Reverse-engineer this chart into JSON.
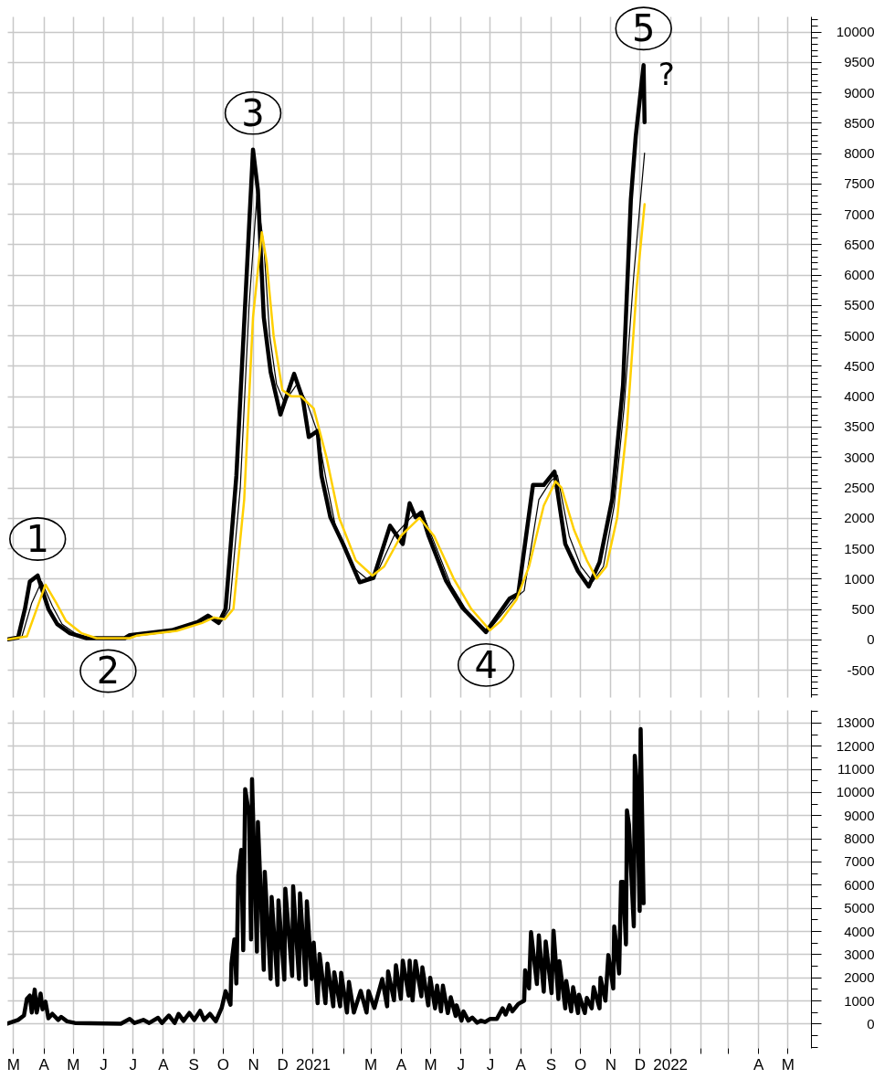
{
  "chart_data": [
    {
      "type": "line",
      "grid": true,
      "tick_labels": "y",
      "xlim": [
        "2020-02-24",
        "2022-05-25"
      ],
      "xticks": [
        {
          "value": "2020-03-01",
          "label": null
        },
        {
          "value": "2020-04-01",
          "label": null
        },
        {
          "value": "2020-05-01",
          "label": null
        },
        {
          "value": "2020-06-01",
          "label": null
        },
        {
          "value": "2020-07-01",
          "label": null
        },
        {
          "value": "2020-08-01",
          "label": null
        },
        {
          "value": "2020-09-01",
          "label": null
        },
        {
          "value": "2020-10-01",
          "label": null
        },
        {
          "value": "2020-11-01",
          "label": null
        },
        {
          "value": "2020-12-01",
          "label": null
        },
        {
          "value": "2021-01-01",
          "label": null
        },
        {
          "value": "2021-02-01",
          "label": null
        },
        {
          "value": "2021-03-01",
          "label": null
        },
        {
          "value": "2021-04-01",
          "label": null
        },
        {
          "value": "2021-05-01",
          "label": null
        },
        {
          "value": "2021-06-01",
          "label": null
        },
        {
          "value": "2021-07-01",
          "label": null
        },
        {
          "value": "2021-08-01",
          "label": null
        },
        {
          "value": "2021-09-01",
          "label": null
        },
        {
          "value": "2021-10-01",
          "label": null
        },
        {
          "value": "2021-11-01",
          "label": null
        },
        {
          "value": "2021-12-01",
          "label": null
        },
        {
          "value": "2022-01-01",
          "label": null
        },
        {
          "value": "2022-02-01",
          "label": null
        },
        {
          "value": "2022-03-01",
          "label": null
        },
        {
          "value": "2022-04-01",
          "label": null
        },
        {
          "value": "2022-05-01",
          "label": null
        }
      ],
      "ylim": [
        -950,
        10250
      ],
      "yticks": [
        {
          "value": -900,
          "label": null
        },
        {
          "value": -800,
          "label": null
        },
        {
          "value": -700,
          "label": null
        },
        {
          "value": -600,
          "label": null
        },
        -500,
        {
          "value": -400,
          "label": null
        },
        {
          "value": -300,
          "label": null
        },
        {
          "value": -200,
          "label": null
        },
        {
          "value": -100,
          "label": null
        },
        0,
        {
          "value": 100,
          "label": null
        },
        {
          "value": 200,
          "label": null
        },
        {
          "value": 300,
          "label": null
        },
        {
          "value": 400,
          "label": null
        },
        500,
        {
          "value": 600,
          "label": null
        },
        {
          "value": 700,
          "label": null
        },
        {
          "value": 800,
          "label": null
        },
        {
          "value": 900,
          "label": null
        },
        1000,
        {
          "value": 1100,
          "label": null
        },
        {
          "value": 1200,
          "label": null
        },
        {
          "value": 1300,
          "label": null
        },
        {
          "value": 1400,
          "label": null
        },
        1500,
        {
          "value": 1600,
          "label": null
        },
        {
          "value": 1700,
          "label": null
        },
        {
          "value": 1800,
          "label": null
        },
        {
          "value": 1900,
          "label": null
        },
        2000,
        {
          "value": 2100,
          "label": null
        },
        {
          "value": 2200,
          "label": null
        },
        {
          "value": 2300,
          "label": null
        },
        {
          "value": 2400,
          "label": null
        },
        2500,
        {
          "value": 2600,
          "label": null
        },
        {
          "value": 2700,
          "label": null
        },
        {
          "value": 2800,
          "label": null
        },
        {
          "value": 2900,
          "label": null
        },
        3000,
        {
          "value": 3100,
          "label": null
        },
        {
          "value": 3200,
          "label": null
        },
        {
          "value": 3300,
          "label": null
        },
        {
          "value": 3400,
          "label": null
        },
        3500,
        {
          "value": 3600,
          "label": null
        },
        {
          "value": 3700,
          "label": null
        },
        {
          "value": 3800,
          "label": null
        },
        {
          "value": 3900,
          "label": null
        },
        4000,
        {
          "value": 4100,
          "label": null
        },
        {
          "value": 4200,
          "label": null
        },
        {
          "value": 4300,
          "label": null
        },
        {
          "value": 4400,
          "label": null
        },
        4500,
        {
          "value": 4600,
          "label": null
        },
        {
          "value": 4700,
          "label": null
        },
        {
          "value": 4800,
          "label": null
        },
        {
          "value": 4900,
          "label": null
        },
        5000,
        {
          "value": 5100,
          "label": null
        },
        {
          "value": 5200,
          "label": null
        },
        {
          "value": 5300,
          "label": null
        },
        {
          "value": 5400,
          "label": null
        },
        5500,
        {
          "value": 5600,
          "label": null
        },
        {
          "value": 5700,
          "label": null
        },
        {
          "value": 5800,
          "label": null
        },
        {
          "value": 5900,
          "label": null
        },
        6000,
        {
          "value": 6100,
          "label": null
        },
        {
          "value": 6200,
          "label": null
        },
        {
          "value": 6300,
          "label": null
        },
        {
          "value": 6400,
          "label": null
        },
        6500,
        {
          "value": 6600,
          "label": null
        },
        {
          "value": 6700,
          "label": null
        },
        {
          "value": 6800,
          "label": null
        },
        {
          "value": 6900,
          "label": null
        },
        7000,
        {
          "value": 7100,
          "label": null
        },
        {
          "value": 7200,
          "label": null
        },
        {
          "value": 7300,
          "label": null
        },
        {
          "value": 7400,
          "label": null
        },
        7500,
        {
          "value": 7600,
          "label": null
        },
        {
          "value": 7700,
          "label": null
        },
        {
          "value": 7800,
          "label": null
        },
        {
          "value": 7900,
          "label": null
        },
        8000,
        {
          "value": 8100,
          "label": null
        },
        {
          "value": 8200,
          "label": null
        },
        {
          "value": 8300,
          "label": null
        },
        {
          "value": 8400,
          "label": null
        },
        8500,
        {
          "value": 8600,
          "label": null
        },
        {
          "value": 8700,
          "label": null
        },
        {
          "value": 8800,
          "label": null
        },
        {
          "value": 8900,
          "label": null
        },
        9000,
        {
          "value": 9100,
          "label": null
        },
        {
          "value": 9200,
          "label": null
        },
        {
          "value": 9300,
          "label": null
        },
        {
          "value": 9400,
          "label": null
        },
        9500,
        {
          "value": 9600,
          "label": null
        },
        {
          "value": 9700,
          "label": null
        },
        {
          "value": 9800,
          "label": null
        },
        {
          "value": 9900,
          "label": null
        },
        10000,
        {
          "value": 10100,
          "label": null
        },
        {
          "value": 10200,
          "label": null
        }
      ],
      "annotations": [
        {
          "text": "1",
          "x": "2020-03-26",
          "y": 1050
        },
        {
          "text": "2",
          "x": "2020-06-06",
          "y": 20
        },
        {
          "text": "3",
          "x": "2020-11-01",
          "y": 8060
        },
        {
          "text": "4",
          "x": "2021-06-27",
          "y": 120
        },
        {
          "text": "5",
          "x": "2021-12-05",
          "y": 9450
        },
        "?"
      ],
      "series": [
        {
          "color": "#000000",
          "x": [
            "2020-02-25",
            "2020-03-06",
            "2020-03-13",
            "2020-03-18",
            "2020-03-26",
            "2020-04-06",
            "2020-04-15",
            "2020-04-28",
            "2020-05-15",
            "2020-06-23",
            "2020-06-28",
            "2020-08-10",
            "2020-09-06",
            "2020-09-16",
            "2020-09-27",
            "2020-10-04",
            "2020-10-15",
            "2020-10-24",
            "2020-11-01",
            "2020-11-06",
            "2020-11-12",
            "2020-11-19",
            "2020-11-29",
            "2020-12-13",
            "2020-12-22",
            "2020-12-28",
            "2021-01-06",
            "2021-01-10",
            "2021-01-19",
            "2021-02-01",
            "2021-02-18",
            "2021-03-04",
            "2021-03-21",
            "2021-04-03",
            "2021-04-10",
            "2021-04-16",
            "2021-04-22",
            "2021-04-29",
            "2021-05-17",
            "2021-06-03",
            "2021-06-21",
            "2021-06-27",
            "2021-07-21",
            "2021-07-30",
            "2021-08-14",
            "2021-08-25",
            "2021-09-05",
            "2021-09-16",
            "2021-09-29",
            "2021-10-10",
            "2021-10-21",
            "2021-11-03",
            "2021-11-14",
            "2021-11-22",
            "2021-11-27",
            "2021-12-05",
            "2021-12-06"
          ],
          "values": [
            0,
            30,
            500,
            950,
            1050,
            500,
            250,
            100,
            20,
            20,
            70,
            150,
            290,
            390,
            270,
            500,
            2690,
            5520,
            8060,
            7390,
            5300,
            4400,
            3700,
            4370,
            3950,
            3330,
            3430,
            2690,
            2010,
            1570,
            940,
            1010,
            1870,
            1570,
            2240,
            2010,
            2090,
            1720,
            970,
            520,
            220,
            120,
            670,
            750,
            2540,
            2540,
            2760,
            1570,
            1120,
            870,
            1270,
            2310,
            4180,
            7240,
            8280,
            9450,
            8510
          ]
        },
        {
          "color": "#000000",
          "x": [
            "2020-02-25",
            "2020-03-10",
            "2020-03-20",
            "2020-03-30",
            "2020-04-10",
            "2020-04-20",
            "2020-05-05",
            "2020-05-20",
            "2020-06-25",
            "2020-07-01",
            "2020-08-12",
            "2020-09-08",
            "2020-09-19",
            "2020-09-30",
            "2020-10-08",
            "2020-10-19",
            "2020-10-28",
            "2020-11-05",
            "2020-11-12",
            "2020-11-18",
            "2020-11-25",
            "2020-12-03",
            "2020-12-16",
            "2020-12-26",
            "2021-01-06",
            "2021-01-15",
            "2021-01-25",
            "2021-02-10",
            "2021-02-25",
            "2021-03-08",
            "2021-03-25",
            "2021-04-14",
            "2021-04-25",
            "2021-05-05",
            "2021-05-22",
            "2021-06-10",
            "2021-06-29",
            "2021-07-10",
            "2021-07-25",
            "2021-08-05",
            "2021-08-20",
            "2021-09-01",
            "2021-09-08",
            "2021-09-20",
            "2021-10-02",
            "2021-10-14",
            "2021-10-25",
            "2021-11-05",
            "2021-11-15",
            "2021-11-25",
            "2021-12-06"
          ],
          "values": [
            0,
            50,
            600,
            950,
            550,
            250,
            80,
            20,
            20,
            60,
            150,
            280,
            370,
            300,
            500,
            2500,
            5500,
            7300,
            6500,
            5000,
            4200,
            3900,
            4200,
            3900,
            3400,
            2600,
            1800,
            1200,
            1000,
            1100,
            1700,
            2050,
            2000,
            1600,
            900,
            400,
            130,
            350,
            650,
            800,
            2300,
            2600,
            2700,
            1700,
            1200,
            950,
            1200,
            2200,
            3800,
            6000,
            8000
          ]
        },
        {
          "color": "#ffd000",
          "x": [
            "2020-02-25",
            "2020-03-15",
            "2020-03-25",
            "2020-04-03",
            "2020-04-14",
            "2020-04-24",
            "2020-05-10",
            "2020-05-25",
            "2020-06-28",
            "2020-07-05",
            "2020-08-15",
            "2020-09-10",
            "2020-09-22",
            "2020-10-03",
            "2020-10-12",
            "2020-10-23",
            "2020-11-01",
            "2020-11-10",
            "2020-11-15",
            "2020-11-22",
            "2020-12-01",
            "2020-12-10",
            "2020-12-20",
            "2021-01-02",
            "2021-01-15",
            "2021-01-28",
            "2021-02-14",
            "2021-03-03",
            "2021-03-15",
            "2021-04-01",
            "2021-04-20",
            "2021-05-05",
            "2021-05-25",
            "2021-06-12",
            "2021-07-01",
            "2021-07-12",
            "2021-07-28",
            "2021-08-10",
            "2021-08-25",
            "2021-09-06",
            "2021-09-12",
            "2021-09-25",
            "2021-10-08",
            "2021-10-18",
            "2021-10-28",
            "2021-11-08",
            "2021-11-18",
            "2021-11-28",
            "2021-12-06"
          ],
          "values": [
            0,
            50,
            500,
            900,
            600,
            300,
            100,
            20,
            20,
            60,
            140,
            270,
            360,
            330,
            500,
            2300,
            5300,
            6700,
            6200,
            5000,
            4100,
            4000,
            4000,
            3800,
            3000,
            2000,
            1300,
            1050,
            1200,
            1700,
            2000,
            1700,
            1000,
            500,
            150,
            300,
            650,
            1200,
            2200,
            2600,
            2500,
            1800,
            1300,
            1000,
            1200,
            2000,
            3500,
            5800,
            7160
          ]
        }
      ]
    },
    {
      "type": "line",
      "grid": true,
      "xlim": [
        "2020-02-24",
        "2022-05-25"
      ],
      "xticks": [
        {
          "value": "2020-03-01",
          "label": "M"
        },
        {
          "value": "2020-04-01",
          "label": "A"
        },
        {
          "value": "2020-05-01",
          "label": "M"
        },
        {
          "value": "2020-06-01",
          "label": "J"
        },
        {
          "value": "2020-07-01",
          "label": "J"
        },
        {
          "value": "2020-08-01",
          "label": "A"
        },
        {
          "value": "2020-09-01",
          "label": "S"
        },
        {
          "value": "2020-10-01",
          "label": "O"
        },
        {
          "value": "2020-11-01",
          "label": "N"
        },
        {
          "value": "2020-12-01",
          "label": "D"
        },
        {
          "value": "2021-01-01",
          "label": "2021"
        },
        {
          "value": "2021-02-01",
          "label": null
        },
        {
          "value": "2021-03-01",
          "label": "M"
        },
        {
          "value": "2021-04-01",
          "label": "A"
        },
        {
          "value": "2021-05-01",
          "label": "M"
        },
        {
          "value": "2021-06-01",
          "label": "J"
        },
        {
          "value": "2021-07-01",
          "label": "J"
        },
        {
          "value": "2021-08-01",
          "label": "A"
        },
        {
          "value": "2021-09-01",
          "label": "S"
        },
        {
          "value": "2021-10-01",
          "label": "O"
        },
        {
          "value": "2021-11-01",
          "label": "N"
        },
        {
          "value": "2021-12-01",
          "label": "D"
        },
        {
          "value": "2022-01-01",
          "label": "2022"
        },
        {
          "value": "2022-02-01",
          "label": null
        },
        {
          "value": "2022-03-01",
          "label": null
        },
        {
          "value": "2022-04-01",
          "label": "A"
        },
        {
          "value": "2022-05-01",
          "label": "M"
        }
      ],
      "ylim": [
        -1050,
        13550
      ],
      "yticks": [
        {
          "value": -1000,
          "label": null
        },
        {
          "value": -500,
          "label": null
        },
        0,
        {
          "value": 500,
          "label": null
        },
        1000,
        {
          "value": 1500,
          "label": null
        },
        2000,
        {
          "value": 2500,
          "label": null
        },
        3000,
        {
          "value": 3500,
          "label": null
        },
        4000,
        {
          "value": 4500,
          "label": null
        },
        5000,
        {
          "value": 5500,
          "label": null
        },
        6000,
        {
          "value": 6500,
          "label": null
        },
        7000,
        {
          "value": 7500,
          "label": null
        },
        8000,
        {
          "value": 8500,
          "label": null
        },
        9000,
        {
          "value": 9500,
          "label": null
        },
        10000,
        {
          "value": 10500,
          "label": null
        },
        11000,
        {
          "value": 11500,
          "label": null
        },
        12000,
        {
          "value": 12500,
          "label": null
        },
        13000,
        {
          "value": 13500,
          "label": null
        }
      ],
      "series": [
        {
          "color": "#000000",
          "x": [
            "2020-02-24",
            "2020-03-06",
            "2020-03-12",
            "2020-03-15",
            "2020-03-18",
            "2020-03-20",
            "2020-03-23",
            "2020-03-25",
            "2020-03-29",
            "2020-03-31",
            "2020-04-03",
            "2020-04-06",
            "2020-04-10",
            "2020-04-16",
            "2020-04-19",
            "2020-04-25",
            "2020-05-03",
            "2020-06-19",
            "2020-06-28",
            "2020-07-03",
            "2020-07-12",
            "2020-07-18",
            "2020-07-27",
            "2020-07-31",
            "2020-08-07",
            "2020-08-13",
            "2020-08-17",
            "2020-08-22",
            "2020-08-28",
            "2020-09-02",
            "2020-09-08",
            "2020-09-12",
            "2020-09-18",
            "2020-09-24",
            "2020-09-30",
            "2020-10-04",
            "2020-10-09",
            "2020-10-10",
            "2020-10-13",
            "2020-10-15",
            "2020-10-17",
            "2020-10-20",
            "2020-10-22",
            "2020-10-24",
            "2020-10-28",
            "2020-10-30",
            "2020-10-31",
            "2020-11-05",
            "2020-11-06",
            "2020-11-12",
            "2020-11-13",
            "2020-11-19",
            "2020-11-20",
            "2020-11-26",
            "2020-11-27",
            "2020-12-03",
            "2020-12-04",
            "2020-12-11",
            "2020-12-12",
            "2020-12-18",
            "2020-12-19",
            "2020-12-25",
            "2020-12-26",
            "2020-12-31",
            "2021-01-02",
            "2021-01-06",
            "2021-01-08",
            "2021-01-14",
            "2021-01-16",
            "2021-01-22",
            "2021-01-23",
            "2021-01-29",
            "2021-01-30",
            "2021-02-05",
            "2021-02-07",
            "2021-02-12",
            "2021-02-19",
            "2021-02-25",
            "2021-02-27",
            "2021-03-05",
            "2021-03-13",
            "2021-03-18",
            "2021-03-19",
            "2021-03-25",
            "2021-03-27",
            "2021-04-01",
            "2021-04-03",
            "2021-04-09",
            "2021-04-10",
            "2021-04-13",
            "2021-04-16",
            "2021-04-22",
            "2021-04-23",
            "2021-04-29",
            "2021-05-01",
            "2021-05-06",
            "2021-05-08",
            "2021-05-12",
            "2021-05-14",
            "2021-05-19",
            "2021-05-22",
            "2021-05-27",
            "2021-05-28",
            "2021-06-02",
            "2021-06-04",
            "2021-06-09",
            "2021-06-13",
            "2021-06-18",
            "2021-06-22",
            "2021-06-26",
            "2021-07-01",
            "2021-07-08",
            "2021-07-14",
            "2021-07-17",
            "2021-07-21",
            "2021-07-24",
            "2021-07-30",
            "2021-08-05",
            "2021-08-06",
            "2021-08-10",
            "2021-08-12",
            "2021-08-18",
            "2021-08-20",
            "2021-08-25",
            "2021-08-27",
            "2021-09-02",
            "2021-09-04",
            "2021-09-09",
            "2021-09-10",
            "2021-09-16",
            "2021-09-17",
            "2021-09-22",
            "2021-09-24",
            "2021-09-29",
            "2021-09-30",
            "2021-10-06",
            "2021-10-08",
            "2021-10-13",
            "2021-10-15",
            "2021-10-21",
            "2021-10-22",
            "2021-10-27",
            "2021-10-30",
            "2021-11-04",
            "2021-11-05",
            "2021-11-10",
            "2021-11-12",
            "2021-11-14",
            "2021-11-17",
            "2021-11-18",
            "2021-11-20",
            "2021-11-25",
            "2021-11-26",
            "2021-11-28",
            "2021-12-01",
            "2021-12-02",
            "2021-12-05"
          ],
          "values": [
            0,
            160,
            350,
            1070,
            1210,
            480,
            1470,
            480,
            1300,
            620,
            950,
            230,
            420,
            160,
            290,
            100,
            30,
            0,
            200,
            30,
            160,
            30,
            250,
            30,
            350,
            30,
            420,
            120,
            460,
            160,
            550,
            160,
            420,
            100,
            680,
            1400,
            820,
            2600,
            3640,
            1730,
            6400,
            7500,
            3170,
            10130,
            9020,
            3640,
            10560,
            3110,
            8710,
            2320,
            6560,
            1930,
            5470,
            1670,
            5320,
            1900,
            5830,
            2060,
            5930,
            1930,
            5630,
            1670,
            5280,
            1930,
            3500,
            880,
            3000,
            880,
            2590,
            750,
            2220,
            750,
            2200,
            480,
            1800,
            480,
            1410,
            480,
            1410,
            680,
            1930,
            750,
            2250,
            1010,
            2520,
            1070,
            2720,
            1210,
            2720,
            1000,
            2700,
            1180,
            2430,
            790,
            1980,
            660,
            1640,
            530,
            1640,
            460,
            1140,
            330,
            790,
            130,
            530,
            130,
            260,
            40,
            130,
            70,
            200,
            200,
            660,
            390,
            790,
            530,
            850,
            990,
            2300,
            1520,
            3950,
            1710,
            3810,
            1380,
            3550,
            1320,
            4010,
            1060,
            2700,
            660,
            1840,
            530,
            1570,
            460,
            1250,
            460,
            1110,
            660,
            1570,
            660,
            1980,
            990,
            2960,
            1520,
            4200,
            2170,
            6120,
            6120,
            3420,
            9210,
            8610,
            4200,
            11570,
            10450,
            4870,
            12720,
            5200
          ]
        }
      ]
    }
  ]
}
